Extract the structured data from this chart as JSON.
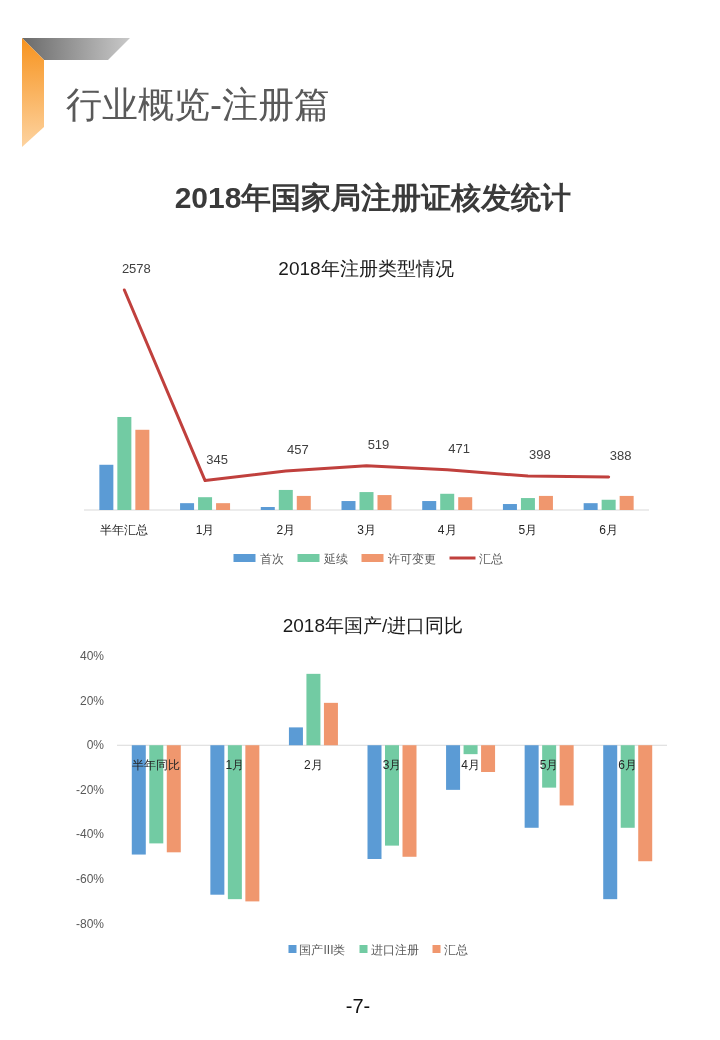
{
  "chart_data": [
    {
      "type": "bar",
      "title": "2018年注册类型情况",
      "annotations": [
        "行业概览-注册篇",
        "2018年国家局注册证核发统计"
      ],
      "categories": [
        "半年汇总",
        "1月",
        "2月",
        "3月",
        "4月",
        "5月",
        "6月"
      ],
      "series": [
        {
          "name": "首次",
          "color": "#5b9bd5",
          "values": [
            530,
            80,
            35,
            105,
            105,
            70,
            80
          ]
        },
        {
          "name": "延续",
          "color": "#72cba3",
          "values": [
            1090,
            150,
            235,
            210,
            190,
            140,
            120
          ]
        },
        {
          "name": "许可变更",
          "color": "#f0976e",
          "values": [
            940,
            80,
            165,
            175,
            150,
            165,
            165
          ]
        },
        {
          "name": "汇总",
          "type": "line",
          "color": "#c0403d",
          "values": [
            2578,
            345,
            457,
            519,
            471,
            398,
            388
          ],
          "value_labels": [
            "2578",
            "345",
            "457",
            "519",
            "471",
            "398",
            "388"
          ]
        }
      ],
      "tick_labels": "x",
      "legend": "bottom"
    },
    {
      "type": "bar",
      "title": "2018年国产/进口同比",
      "annotations": [
        "-7-"
      ],
      "categories": [
        "半年同比",
        "1月",
        "2月",
        "3月",
        "4月",
        "5月",
        "6月"
      ],
      "series": [
        {
          "name": "国产III类",
          "color": "#5b9bd5",
          "values": [
            -49,
            -67,
            8,
            -51,
            -20,
            -37,
            -69
          ]
        },
        {
          "name": "进口注册",
          "color": "#72cba3",
          "values": [
            -44,
            -69,
            32,
            -45,
            -4,
            -19,
            -37
          ]
        },
        {
          "name": "汇总",
          "color": "#f0976e",
          "values": [
            -48,
            -70,
            19,
            -50,
            -12,
            -27,
            -52
          ]
        }
      ],
      "ylim": [
        -80,
        40
      ],
      "yticks": [
        {
          "value": 40,
          "label": "40%"
        },
        {
          "value": 20,
          "label": "20%"
        },
        {
          "value": 0,
          "label": "0%"
        },
        {
          "value": -20,
          "label": "-20%"
        },
        {
          "value": -40,
          "label": "-40%"
        },
        {
          "value": -60,
          "label": "-60%"
        },
        {
          "value": -80,
          "label": "-80%"
        }
      ],
      "legend": "bottom"
    }
  ]
}
